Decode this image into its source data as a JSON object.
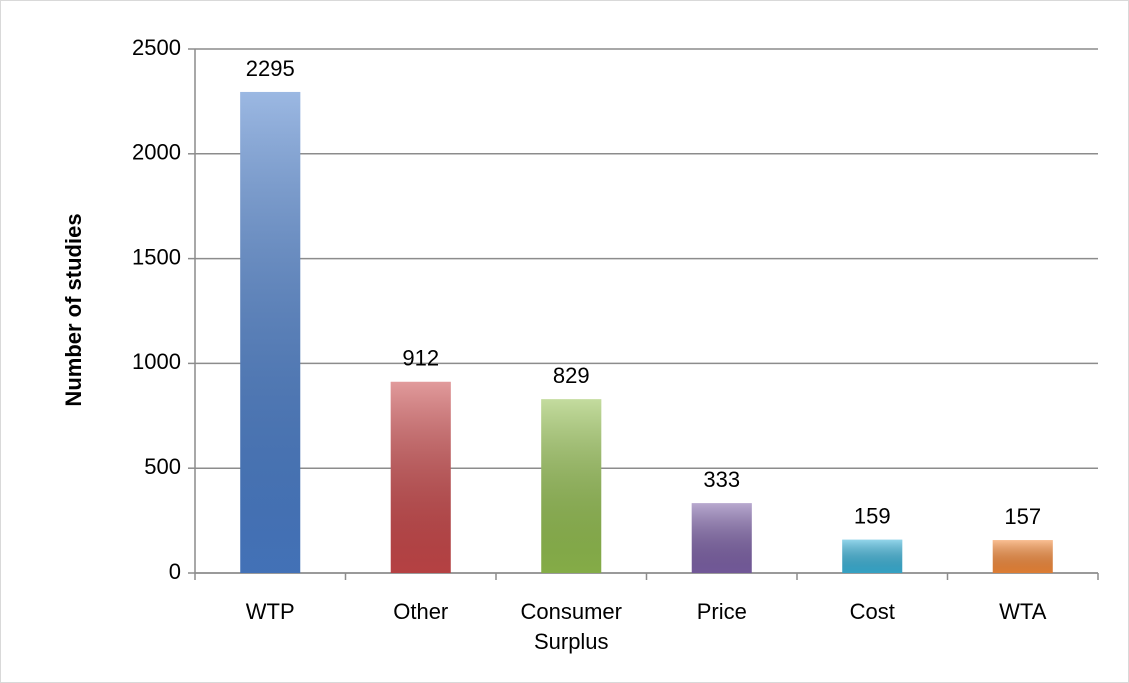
{
  "chart_data": {
    "type": "bar",
    "y_label": "Number of studies",
    "categories": [
      "WTP",
      "Other",
      "Consumer Surplus",
      "Price",
      "Cost",
      "WTA"
    ],
    "values": [
      2295,
      912,
      829,
      333,
      159,
      157
    ],
    "colors": [
      "#4a7ecb",
      "#c9484a",
      "#93bf4f",
      "#7e62a8",
      "#3bb3d9",
      "#f58a3a"
    ],
    "ylim": [
      0,
      2500
    ],
    "yticks": [
      0,
      500,
      1000,
      1500,
      2000,
      2500
    ],
    "grid": true
  }
}
